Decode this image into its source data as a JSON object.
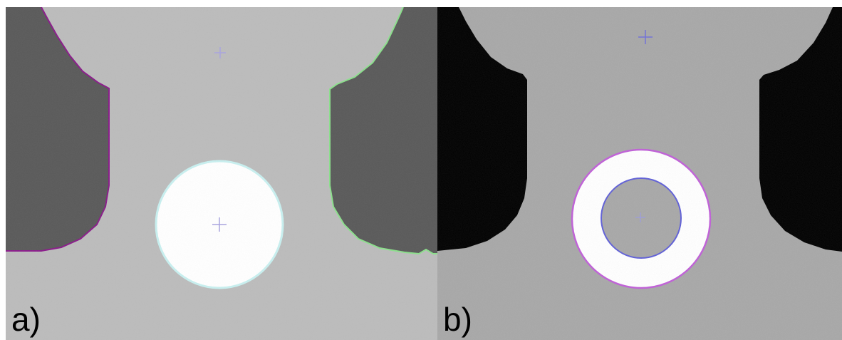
{
  "figure": {
    "panels": [
      {
        "id": "a",
        "label": "a)",
        "background_color": "#bcbcbc",
        "side_region_color": "#5a5a5a",
        "disk_color": "#ffffff",
        "left_contour_color": "#8b1a8b",
        "right_contour_color": "#8be08b",
        "disk_outline_color": "#c8f0f0",
        "center_marker_color": "#a9a4e0"
      },
      {
        "id": "b",
        "label": "b)",
        "background_color": "#a8a8a8",
        "side_region_color": "#000000",
        "ring_color": "#ffffff",
        "outer_ring_outline_color": "#c060d8",
        "inner_ring_outline_color": "#6060d8",
        "center_marker_color": "#7070d8"
      }
    ]
  }
}
